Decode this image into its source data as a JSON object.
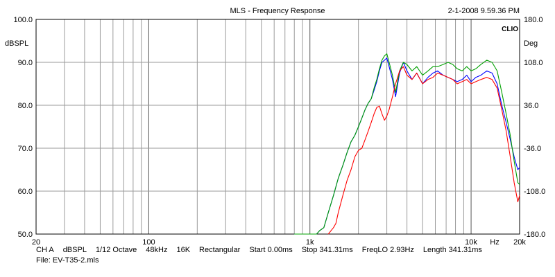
{
  "chart_data": {
    "type": "line",
    "title": "MLS - Frequency Response",
    "timestamp": "2-1-2008 9.59.36 PM",
    "brand": "CLIO",
    "ylabel_left": "dBSPL",
    "ylabel_right": "Deg",
    "x_scale": "log",
    "xlim": [
      20,
      20000
    ],
    "ylim": [
      50,
      100
    ],
    "y2lim": [
      -180,
      180
    ],
    "x_tick_labels": [
      {
        "value": 20,
        "label": "20"
      },
      {
        "value": 100,
        "label": "100"
      },
      {
        "value": 1000,
        "label": "1k"
      },
      {
        "value": 10000,
        "label": "10k"
      },
      {
        "value": 14000,
        "label": "Hz"
      },
      {
        "value": 20000,
        "label": "20k"
      }
    ],
    "y_tick_labels": [
      "50.0",
      "60.0",
      "70.0",
      "80.0",
      "90.0",
      "100.0"
    ],
    "y2_tick_labels": [
      "-180.0",
      "-108.0",
      "-36.0",
      "36.0",
      "108.0",
      "180.0"
    ],
    "grid": true,
    "series": [
      {
        "color": "#0000ff",
        "x": [
          800,
          1100,
          1150,
          1220,
          1300,
          1400,
          1500,
          1600,
          1700,
          1800,
          1900,
          2000,
          2100,
          2200,
          2300,
          2400,
          2500,
          2600,
          2700,
          2800,
          2900,
          3000,
          3100,
          3250,
          3400,
          3600,
          3800,
          4000,
          4300,
          4600,
          5000,
          5400,
          5800,
          6200,
          6700,
          7200,
          7700,
          8200,
          8800,
          9400,
          10000,
          10700,
          11500,
          12500,
          13500,
          14500,
          15500,
          16500,
          17500,
          18500,
          19500,
          20000
        ],
        "y": [
          50.0,
          50.0,
          50.8,
          51.5,
          55.0,
          59.0,
          63.0,
          66.0,
          69.0,
          71.5,
          73.0,
          75.0,
          77.0,
          79.0,
          80.5,
          81.5,
          83.5,
          85.5,
          88.0,
          90.0,
          90.5,
          91.0,
          89.0,
          86.0,
          82.0,
          87.5,
          90.0,
          88.0,
          86.0,
          87.5,
          85.0,
          86.5,
          87.5,
          88.0,
          87.0,
          86.5,
          86.0,
          85.5,
          86.0,
          87.0,
          85.5,
          86.5,
          87.0,
          88.0,
          87.5,
          85.0,
          80.0,
          76.0,
          72.0,
          68.0,
          65.0,
          65.5
        ]
      },
      {
        "color": "#00a000",
        "x": [
          800,
          1100,
          1150,
          1220,
          1300,
          1400,
          1500,
          1600,
          1700,
          1800,
          1900,
          2000,
          2100,
          2200,
          2300,
          2400,
          2500,
          2600,
          2700,
          2800,
          2900,
          3000,
          3100,
          3250,
          3400,
          3600,
          3800,
          4000,
          4300,
          4600,
          5000,
          5400,
          5800,
          6200,
          6700,
          7200,
          7700,
          8200,
          8800,
          9400,
          10000,
          10700,
          11500,
          12500,
          13500,
          14500,
          15500,
          16500,
          17500,
          18500,
          19500,
          20000
        ],
        "y": [
          50.0,
          50.0,
          50.8,
          51.5,
          55.0,
          59.0,
          63.0,
          66.0,
          69.0,
          71.5,
          73.0,
          75.0,
          77.0,
          79.0,
          80.5,
          81.5,
          84.0,
          86.0,
          88.5,
          90.5,
          91.5,
          92.0,
          90.0,
          87.0,
          83.0,
          88.0,
          90.0,
          89.5,
          88.0,
          89.0,
          87.0,
          88.0,
          89.0,
          89.0,
          89.5,
          90.0,
          89.5,
          88.5,
          88.0,
          89.0,
          88.0,
          88.5,
          89.5,
          90.5,
          90.0,
          88.0,
          83.0,
          78.0,
          73.0,
          67.0,
          62.0,
          61.5
        ]
      },
      {
        "color": "#ff0000",
        "x": [
          1300,
          1400,
          1450,
          1500,
          1600,
          1700,
          1800,
          1900,
          2000,
          2100,
          2200,
          2300,
          2400,
          2500,
          2600,
          2700,
          2800,
          2900,
          3000,
          3100,
          3250,
          3400,
          3600,
          3800,
          4000,
          4300,
          4600,
          5000,
          5400,
          5800,
          6200,
          6700,
          7200,
          7700,
          8200,
          8800,
          9400,
          10000,
          10700,
          11500,
          12500,
          13500,
          14500,
          15500,
          16500,
          17500,
          18500,
          19500,
          20000
        ],
        "y": [
          50.0,
          51.5,
          52.5,
          55.0,
          59.0,
          62.5,
          65.0,
          68.0,
          69.5,
          70.0,
          72.0,
          74.0,
          76.0,
          78.0,
          79.5,
          79.8,
          78.0,
          76.5,
          77.5,
          79.0,
          82.0,
          85.0,
          88.0,
          89.0,
          87.0,
          86.0,
          87.5,
          85.0,
          86.0,
          86.5,
          87.5,
          87.0,
          86.5,
          86.0,
          85.0,
          85.5,
          86.0,
          85.0,
          85.5,
          86.0,
          86.5,
          86.0,
          84.0,
          79.0,
          74.0,
          68.0,
          62.0,
          57.5,
          59.0
        ]
      }
    ]
  },
  "footer": {
    "channel": "CH A",
    "unit": "dBSPL",
    "smoothing": "1/12 Octave",
    "sample_rate": "48kHz",
    "size": "16K",
    "window": "Rectangular",
    "start": "Start 0.00ms",
    "stop": "Stop 341.31ms",
    "freqlo": "FreqLO 2.93Hz",
    "length": "Length 341.31ms",
    "file": "File: EV-T35-2.mls"
  }
}
